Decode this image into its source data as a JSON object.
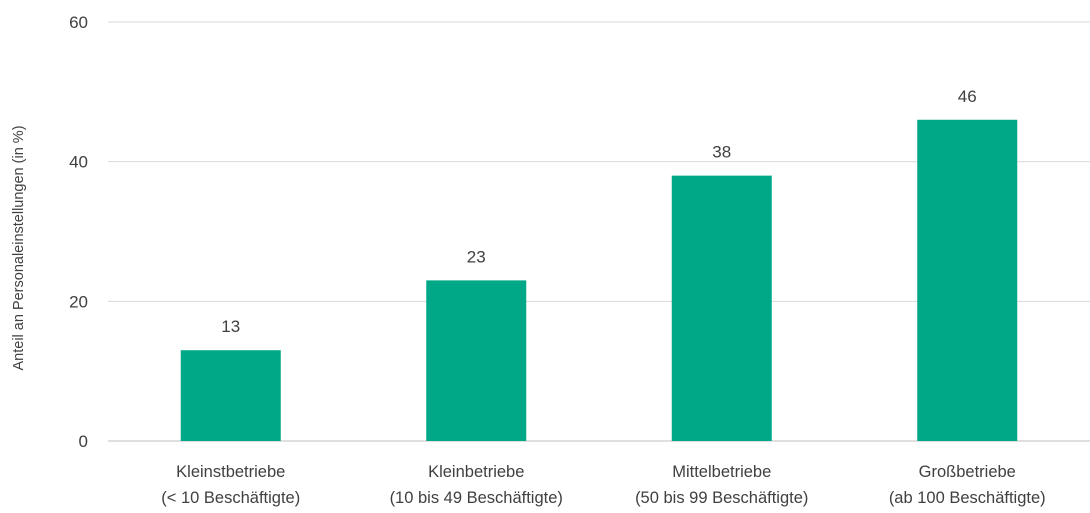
{
  "chart_data": {
    "type": "bar",
    "categories": [
      [
        "Kleinstbetriebe",
        "(< 10 Beschäftigte)"
      ],
      [
        "Kleinbetriebe",
        "(10 bis 49 Beschäftigte)"
      ],
      [
        "Mittelbetriebe",
        "(50 bis 99 Beschäftigte)"
      ],
      [
        "Großbetriebe",
        "(ab 100 Beschäftigte)"
      ]
    ],
    "values": [
      13,
      23,
      38,
      46
    ],
    "data_labels": [
      "13",
      "23",
      "38",
      "46"
    ],
    "title": "",
    "xlabel": "",
    "ylabel": "Anteil an Personaleinstellungen (in %)",
    "ylim": [
      0,
      60
    ],
    "yticks": [
      "0",
      "20",
      "40",
      "60"
    ],
    "grid": true,
    "legend": "none",
    "bar_color": "#00a887"
  }
}
